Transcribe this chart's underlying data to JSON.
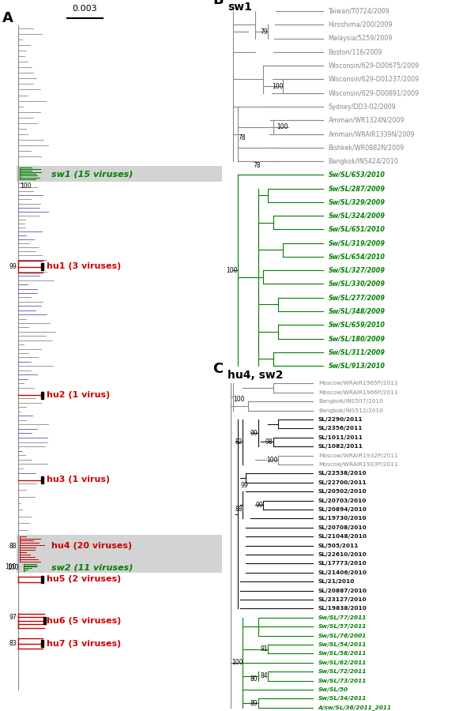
{
  "fig_width": 6.0,
  "fig_height": 9.0,
  "bg_color": "#ffffff",
  "gray": "#888888",
  "blue": "#5555bb",
  "red": "#cc0000",
  "green": "#008000",
  "black": "#111111",
  "panel_B": {
    "gray_taxa": [
      "Taiwan/T0724/2009",
      "Hiroshima/200/2009",
      "Malaysia/5259/2009",
      "Boston/116/2009",
      "Wisconsin/629-D00675/2009",
      "Wisconsin/629-D01237/2009",
      "Wisconsin/629-D00891/2009",
      "Sydney/DD3-02/2009",
      "Amman/WR1324N/2009",
      "Amman/WRAIR1339N/2009",
      "Bishkek/WR0882N/2009",
      "Bangkok/INS424/2010"
    ],
    "green_taxa": [
      "Sw/SL/653/2010",
      "Sw/SL/287/2009",
      "Sw/SL/329/2009",
      "Sw/SL/324/2009",
      "Sw/SL/651/2010",
      "Sw/SL/319/2009",
      "Sw/SL/654/2010",
      "Sw/SL/327/2009",
      "Sw/SL/330/2009",
      "Sw/SL/277/2009",
      "Sw/SL/348/2009",
      "Sw/SL/659/2010",
      "Sw/SL/180/2009",
      "Sw/SL/311/2009",
      "Sw/SL/913/2010"
    ]
  },
  "panel_C": {
    "taxa_order": [
      [
        "gray",
        "Moscow/WRAIR1965P/2011"
      ],
      [
        "gray",
        "Moscow/WRAIR1966P/2011"
      ],
      [
        "gray",
        "Bangkok/INS507/2010"
      ],
      [
        "gray",
        "Bangkok/INS512/2010"
      ],
      [
        "black",
        "SL/2290/2011"
      ],
      [
        "black",
        "SL/2356/2011"
      ],
      [
        "black",
        "SL/1011/2011"
      ],
      [
        "black",
        "SL/1082/2011"
      ],
      [
        "gray",
        "Moscow/WRAIR1932P/2011"
      ],
      [
        "gray",
        "Moscow/WRAIR1933P/2011"
      ],
      [
        "black",
        "SL/22538/2010"
      ],
      [
        "black",
        "SL/22700/2011"
      ],
      [
        "black",
        "SL/20502/2010"
      ],
      [
        "black",
        "SL/20703/2010"
      ],
      [
        "black",
        "SL/20894/2010"
      ],
      [
        "black",
        "SL/19730/2010"
      ],
      [
        "black",
        "SL/20708/2010"
      ],
      [
        "black",
        "SL/21048/2010"
      ],
      [
        "black",
        "SL/505/2011"
      ],
      [
        "black",
        "SL/22610/2010"
      ],
      [
        "black",
        "SL/17773/2010"
      ],
      [
        "black",
        "SL/21406/2010"
      ],
      [
        "black",
        "SL/21/2010"
      ],
      [
        "black",
        "SL/20887/2010"
      ],
      [
        "black",
        "SL/23127/2010"
      ],
      [
        "black",
        "SL/19838/2010"
      ],
      [
        "green",
        "Sw/SL/77/2011"
      ],
      [
        "green",
        "Sw/SL/57/2011"
      ],
      [
        "green",
        "Sw/SL/76/2001"
      ],
      [
        "green",
        "Sw/SL/54/2011"
      ],
      [
        "green",
        "Sw/SL/58/2011"
      ],
      [
        "green",
        "Sw/SL/62/2011"
      ],
      [
        "green",
        "Sw/SL/72/2011"
      ],
      [
        "green",
        "Sw/SL/73/2011"
      ],
      [
        "green",
        "Sw/SL/50"
      ],
      [
        "green",
        "Sw/SL/34/2011"
      ],
      [
        "green",
        "A/sw/SL/36/2011_2011"
      ]
    ]
  }
}
